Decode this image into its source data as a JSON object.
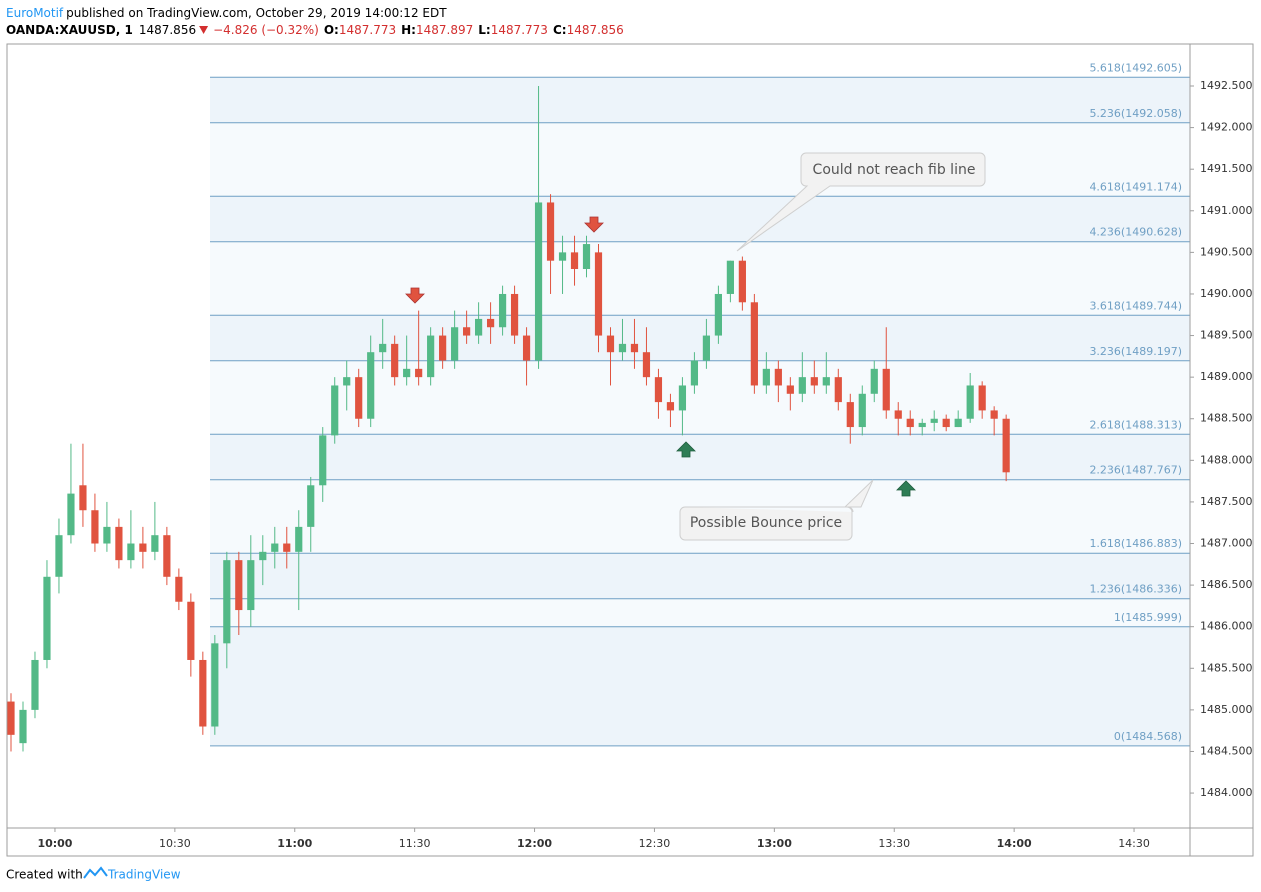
{
  "header": {
    "author": "EuroMotif",
    "published": "published on TradingView.com, October 29, 2019 14:00:12 EDT",
    "symbol": "OANDA:XAUUSD, 1",
    "last": "1487.856",
    "change": "−4.826 (−0.32%)",
    "o_label": "O:",
    "open": "1487.773",
    "h_label": "H:",
    "high": "1487.897",
    "l_label": "L:",
    "low": "1487.773",
    "c_label": "C:",
    "close": "1487.856"
  },
  "footer": {
    "created": "Created with",
    "brand": "TradingView"
  },
  "chart_data": {
    "type": "candlestick",
    "up_color": "#53b987",
    "down_color": "#e0533f",
    "xlim": [
      588,
      884
    ],
    "ylim": [
      1483.58,
      1493.005
    ],
    "xticks": [
      {
        "value": 600,
        "label": "10:00"
      },
      {
        "value": 630,
        "label": "10:30"
      },
      {
        "value": 660,
        "label": "11:00"
      },
      {
        "value": 690,
        "label": "11:30"
      },
      {
        "value": 720,
        "label": "12:00"
      },
      {
        "value": 750,
        "label": "12:30"
      },
      {
        "value": 780,
        "label": "13:00"
      },
      {
        "value": 810,
        "label": "13:30"
      },
      {
        "value": 840,
        "label": "14:00"
      },
      {
        "value": 870,
        "label": "14:30"
      }
    ],
    "yticks": [
      {
        "value": 1484,
        "label": "1484.000"
      },
      {
        "value": 1484.5,
        "label": "1484.500"
      },
      {
        "value": 1485,
        "label": "1485.000"
      },
      {
        "value": 1485.5,
        "label": "1485.500"
      },
      {
        "value": 1486,
        "label": "1486.000"
      },
      {
        "value": 1486.5,
        "label": "1486.500"
      },
      {
        "value": 1487,
        "label": "1487.000"
      },
      {
        "value": 1487.5,
        "label": "1487.500"
      },
      {
        "value": 1488,
        "label": "1488.000"
      },
      {
        "value": 1488.5,
        "label": "1488.500"
      },
      {
        "value": 1489,
        "label": "1489.000"
      },
      {
        "value": 1489.5,
        "label": "1489.500"
      },
      {
        "value": 1490,
        "label": "1490.000"
      },
      {
        "value": 1490.5,
        "label": "1490.500"
      },
      {
        "value": 1491,
        "label": "1491.000"
      },
      {
        "value": 1491.5,
        "label": "1491.500"
      },
      {
        "value": 1492,
        "label": "1492.000"
      },
      {
        "value": 1492.5,
        "label": "1492.500"
      }
    ],
    "fib_color": "#6f9fc4",
    "fib_levels": [
      {
        "price": 1484.568,
        "label": "0(1484.568)"
      },
      {
        "price": 1485.999,
        "label": "1(1485.999)"
      },
      {
        "price": 1486.336,
        "label": "1.236(1486.336)"
      },
      {
        "price": 1486.883,
        "label": "1.618(1486.883)"
      },
      {
        "price": 1487.767,
        "label": "2.236(1487.767)"
      },
      {
        "price": 1488.313,
        "label": "2.618(1488.313)"
      },
      {
        "price": 1489.197,
        "label": "3.236(1489.197)"
      },
      {
        "price": 1489.744,
        "label": "3.618(1489.744)"
      },
      {
        "price": 1490.628,
        "label": "4.236(1490.628)"
      },
      {
        "price": 1491.174,
        "label": "4.618(1491.174)"
      },
      {
        "price": 1492.058,
        "label": "5.236(1492.058)"
      },
      {
        "price": 1492.605,
        "label": "5.618(1492.605)"
      }
    ],
    "annotations": [
      "Could not reach fib line",
      "Possible Bounce price"
    ],
    "x": [
      589,
      592,
      595,
      598,
      601,
      604,
      607,
      610,
      613,
      616,
      619,
      622,
      625,
      628,
      631,
      634,
      637,
      640,
      643,
      646,
      649,
      652,
      655,
      658,
      661,
      664,
      667,
      670,
      673,
      676,
      679,
      682,
      685,
      688,
      691,
      694,
      697,
      700,
      703,
      706,
      709,
      712,
      715,
      718,
      721,
      724,
      727,
      730,
      733,
      736,
      739,
      742,
      745,
      748,
      751,
      754,
      757,
      760,
      763,
      766,
      769,
      772,
      775,
      778,
      781,
      784,
      787,
      790,
      793,
      796,
      799,
      802,
      805,
      808,
      811,
      814,
      817,
      820,
      823,
      826,
      829,
      832,
      835,
      838
    ],
    "open": [
      1485.1,
      1484.6,
      1485.0,
      1485.6,
      1486.6,
      1487.1,
      1487.7,
      1487.4,
      1487.0,
      1487.2,
      1486.8,
      1487.0,
      1486.9,
      1487.1,
      1486.6,
      1486.3,
      1485.6,
      1484.8,
      1485.8,
      1486.8,
      1486.2,
      1486.8,
      1486.9,
      1487.0,
      1486.9,
      1487.2,
      1487.7,
      1488.3,
      1488.9,
      1489.0,
      1488.5,
      1489.3,
      1489.4,
      1489.0,
      1489.1,
      1489.0,
      1489.5,
      1489.2,
      1489.6,
      1489.5,
      1489.7,
      1489.6,
      1490.0,
      1489.5,
      1489.2,
      1491.1,
      1490.4,
      1490.5,
      1490.3,
      1490.5,
      1489.5,
      1489.3,
      1489.4,
      1489.3,
      1489.0,
      1488.7,
      1488.6,
      1488.9,
      1489.2,
      1489.5,
      1490.0,
      1490.4,
      1489.9,
      1488.9,
      1489.1,
      1488.9,
      1488.8,
      1489.0,
      1488.9,
      1489.0,
      1488.7,
      1488.4,
      1488.8,
      1489.1,
      1488.6,
      1488.5,
      1488.4,
      1488.45,
      1488.5,
      1488.4,
      1488.5,
      1488.9,
      1488.6,
      1488.5
    ],
    "high": [
      1485.2,
      1485.1,
      1485.7,
      1486.8,
      1487.3,
      1488.2,
      1488.2,
      1487.6,
      1487.5,
      1487.3,
      1487.4,
      1487.2,
      1487.5,
      1487.2,
      1486.7,
      1486.4,
      1485.7,
      1485.9,
      1486.9,
      1486.9,
      1487.1,
      1487.1,
      1487.2,
      1487.2,
      1487.4,
      1487.8,
      1488.4,
      1489.0,
      1489.2,
      1489.1,
      1489.5,
      1489.7,
      1489.5,
      1489.5,
      1489.8,
      1489.6,
      1489.6,
      1489.8,
      1489.8,
      1489.9,
      1489.9,
      1490.1,
      1490.1,
      1489.6,
      1492.5,
      1491.2,
      1490.7,
      1490.7,
      1490.7,
      1490.6,
      1489.6,
      1489.7,
      1489.7,
      1489.6,
      1489.1,
      1488.8,
      1489.0,
      1489.3,
      1489.7,
      1490.1,
      1490.4,
      1490.45,
      1490.0,
      1489.3,
      1489.2,
      1489.0,
      1489.3,
      1489.2,
      1489.3,
      1489.1,
      1488.8,
      1488.9,
      1489.2,
      1489.6,
      1488.7,
      1488.6,
      1488.5,
      1488.6,
      1488.55,
      1488.6,
      1489.05,
      1488.95,
      1488.65,
      1488.55
    ],
    "low": [
      1484.5,
      1484.5,
      1484.9,
      1485.5,
      1486.4,
      1487.0,
      1487.2,
      1486.9,
      1486.9,
      1486.7,
      1486.7,
      1486.7,
      1486.8,
      1486.5,
      1486.2,
      1485.4,
      1484.7,
      1484.7,
      1485.5,
      1485.9,
      1486.0,
      1486.5,
      1486.7,
      1486.7,
      1486.2,
      1486.9,
      1487.5,
      1488.2,
      1488.6,
      1488.4,
      1488.4,
      1489.1,
      1488.9,
      1488.9,
      1488.9,
      1488.9,
      1489.1,
      1489.1,
      1489.4,
      1489.4,
      1489.4,
      1489.5,
      1489.4,
      1488.9,
      1489.1,
      1490.0,
      1490.0,
      1490.1,
      1490.2,
      1489.3,
      1488.9,
      1489.2,
      1489.1,
      1488.9,
      1488.5,
      1488.4,
      1488.3,
      1488.8,
      1489.1,
      1489.4,
      1489.9,
      1489.8,
      1488.8,
      1488.8,
      1488.7,
      1488.6,
      1488.7,
      1488.8,
      1488.8,
      1488.6,
      1488.2,
      1488.3,
      1488.7,
      1488.5,
      1488.3,
      1488.3,
      1488.3,
      1488.35,
      1488.35,
      1488.4,
      1488.45,
      1488.5,
      1488.3,
      1487.75
    ],
    "close": [
      1484.7,
      1485.0,
      1485.6,
      1486.6,
      1487.1,
      1487.6,
      1487.4,
      1487.0,
      1487.2,
      1486.8,
      1487.0,
      1486.9,
      1487.1,
      1486.6,
      1486.3,
      1485.6,
      1484.8,
      1485.8,
      1486.8,
      1486.2,
      1486.8,
      1486.9,
      1487.0,
      1486.9,
      1487.2,
      1487.7,
      1488.3,
      1488.9,
      1489.0,
      1488.5,
      1489.3,
      1489.4,
      1489.0,
      1489.1,
      1489.0,
      1489.5,
      1489.2,
      1489.6,
      1489.5,
      1489.7,
      1489.6,
      1490.0,
      1489.5,
      1489.2,
      1491.1,
      1490.4,
      1490.5,
      1490.3,
      1490.6,
      1489.5,
      1489.3,
      1489.4,
      1489.3,
      1489.0,
      1488.7,
      1488.6,
      1488.9,
      1489.2,
      1489.5,
      1490.0,
      1490.4,
      1489.9,
      1488.9,
      1489.1,
      1488.9,
      1488.8,
      1489.0,
      1488.9,
      1489.0,
      1488.7,
      1488.4,
      1488.8,
      1489.1,
      1488.6,
      1488.5,
      1488.4,
      1488.45,
      1488.5,
      1488.4,
      1488.5,
      1488.9,
      1488.6,
      1488.5,
      1487.856
    ]
  }
}
